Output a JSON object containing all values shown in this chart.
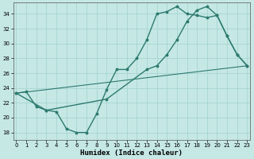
{
  "xlabel": "Humidex (Indice chaleur)",
  "bg_color": "#c5e8e5",
  "grid_color": "#a8d4d0",
  "line_color": "#2d7a6e",
  "xlim": [
    -0.3,
    23.3
  ],
  "ylim": [
    17.0,
    35.5
  ],
  "xticks": [
    0,
    1,
    2,
    3,
    4,
    5,
    6,
    7,
    8,
    9,
    10,
    11,
    12,
    13,
    14,
    15,
    16,
    17,
    18,
    19,
    20,
    21,
    22,
    23
  ],
  "yticks": [
    18,
    20,
    22,
    24,
    26,
    28,
    30,
    32,
    34
  ],
  "line1_x": [
    0,
    1,
    2,
    3,
    4,
    5,
    6,
    7,
    8,
    9,
    10,
    11,
    12,
    13,
    14,
    15,
    16,
    17,
    18,
    19,
    20,
    21,
    22,
    23
  ],
  "line1_y": [
    23.3,
    23.5,
    21.5,
    21.0,
    20.8,
    18.5,
    18.0,
    18.0,
    20.5,
    23.8,
    26.5,
    26.5,
    28.0,
    30.5,
    34.0,
    34.3,
    35.0,
    34.0,
    33.8,
    33.5,
    33.8,
    31.0,
    28.5,
    27.0
  ],
  "line2_x": [
    0,
    3,
    9,
    13,
    14,
    15,
    16,
    17,
    18,
    19,
    20,
    21,
    22,
    23
  ],
  "line2_y": [
    23.3,
    21.0,
    22.5,
    26.5,
    27.0,
    28.5,
    30.5,
    33.0,
    34.5,
    35.0,
    33.8,
    31.0,
    28.5,
    27.0
  ],
  "line3_x": [
    0,
    23
  ],
  "line3_y": [
    23.3,
    27.0
  ],
  "xlabel_fontsize": 6.5,
  "tick_fontsize": 5.0
}
